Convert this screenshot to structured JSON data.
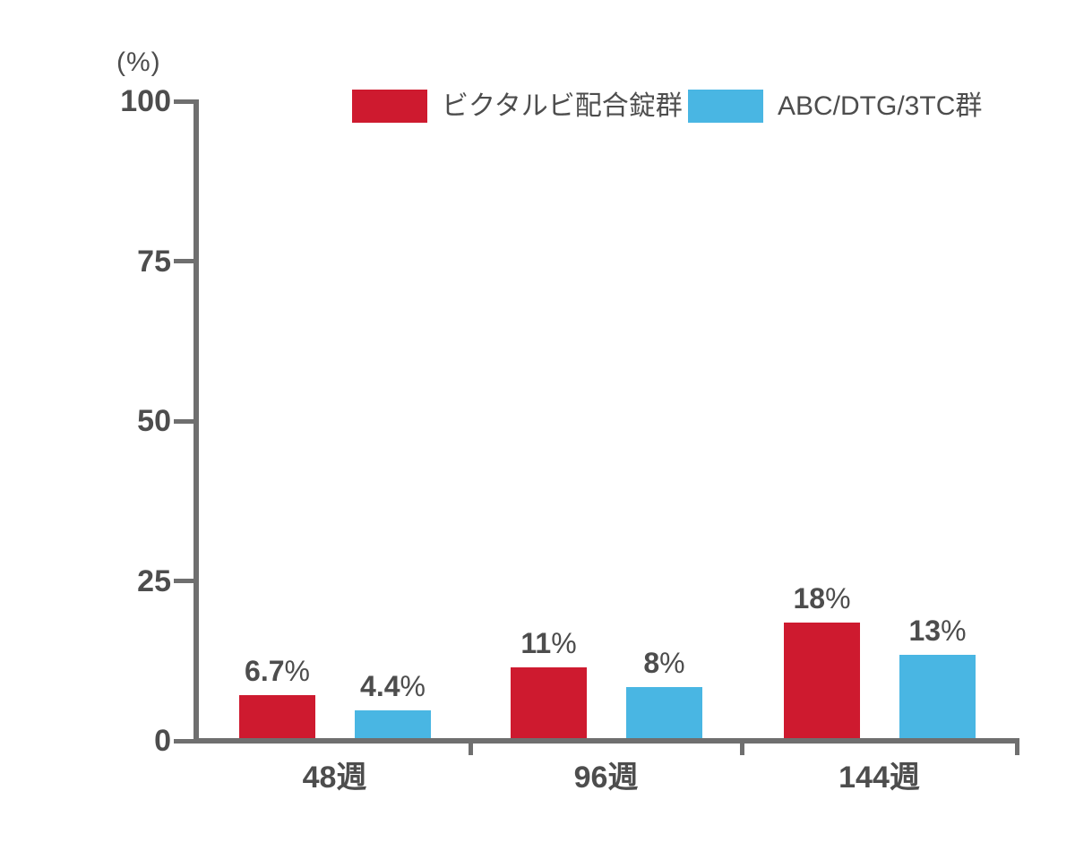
{
  "chart_data": {
    "type": "bar",
    "title": "",
    "unit_label": "(%)",
    "categories": [
      "48週",
      "96週",
      "144週"
    ],
    "series": [
      {
        "name": "ビクタルビ配合錠群",
        "color": "#ce1a2f",
        "values": [
          6.7,
          11,
          18
        ],
        "labels": [
          "6.7%",
          "11%",
          "18%"
        ]
      },
      {
        "name": "ABC/DTG/3TC群",
        "color": "#49b6e3",
        "values": [
          4.4,
          8,
          13
        ],
        "labels": [
          "4.4%",
          "8%",
          "13%"
        ]
      }
    ],
    "ylabel": "(%)",
    "xlabel": "",
    "ylim": [
      0,
      100
    ],
    "yticks": [
      0,
      25,
      50,
      75,
      100
    ],
    "grid": false,
    "legend_position": "top",
    "colors": {
      "axis": "#6f6f6f",
      "text": "#4d4d4d"
    }
  }
}
